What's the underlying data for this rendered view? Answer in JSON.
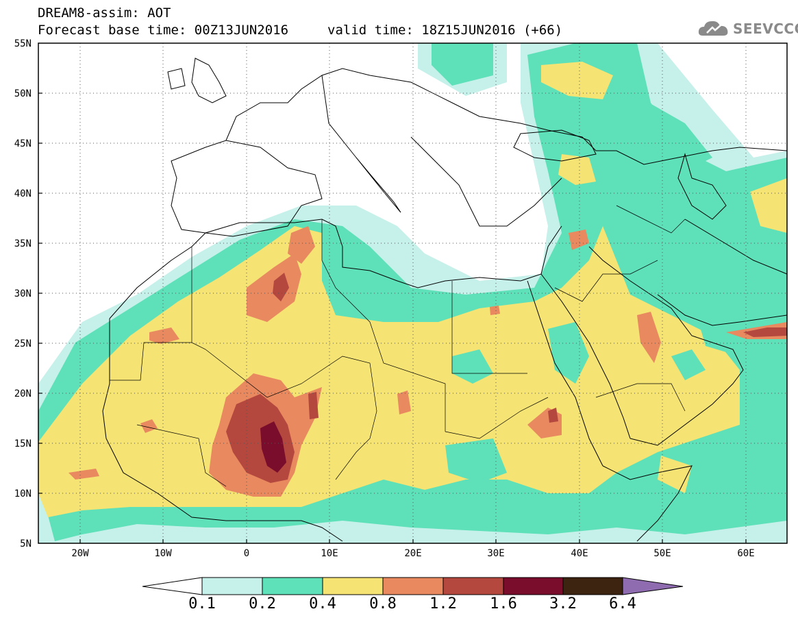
{
  "header": {
    "title": "DREAM8-assim: AOT",
    "base_time": "Forecast base time: 00Z13JUN2016",
    "valid_time": "valid time: 18Z15JUN2016 (+66)"
  },
  "logo": {
    "text": "SEEVCCC",
    "icon": "cloud-icon"
  },
  "axes": {
    "lat_labels": [
      "55N",
      "50N",
      "45N",
      "40N",
      "35N",
      "30N",
      "25N",
      "20N",
      "15N",
      "10N",
      "5N"
    ],
    "lon_labels": [
      "20W",
      "10W",
      "0",
      "10E",
      "20E",
      "30E",
      "40E",
      "50E",
      "60E"
    ],
    "lon_range": [
      -25,
      65
    ],
    "lat_range": [
      5,
      55
    ]
  },
  "colorbar": {
    "labels": [
      "0.1",
      "0.2",
      "0.4",
      "0.8",
      "1.2",
      "1.6",
      "3.2",
      "6.4"
    ],
    "colors": [
      "#ffffff",
      "#c6f0ea",
      "#5ee0b8",
      "#f5e373",
      "#e8895f",
      "#b4483e",
      "#7a0c2c",
      "#3d2411",
      "#8f6bb0"
    ]
  }
}
